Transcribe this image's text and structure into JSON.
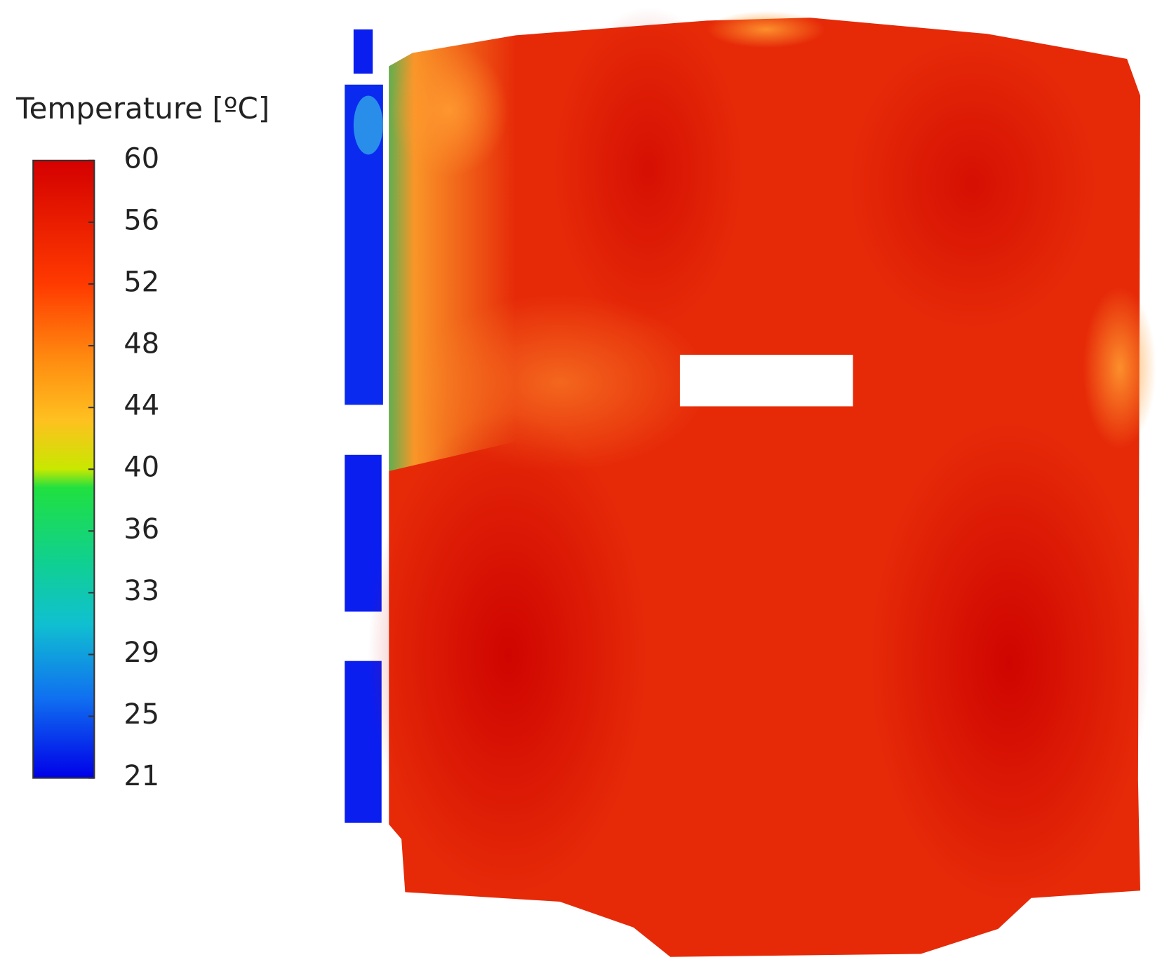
{
  "legend": {
    "title": "Temperature [ºC]",
    "ticks": [
      60,
      56,
      52,
      48,
      44,
      40,
      36,
      33,
      29,
      25,
      21
    ]
  }
}
